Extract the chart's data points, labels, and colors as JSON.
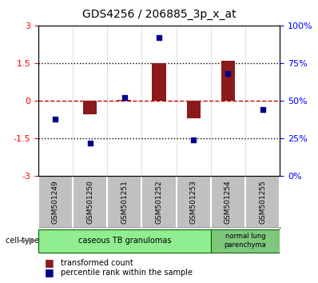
{
  "title": "GDS4256 / 206885_3p_x_at",
  "samples": [
    "GSM501249",
    "GSM501250",
    "GSM501251",
    "GSM501252",
    "GSM501253",
    "GSM501254",
    "GSM501255"
  ],
  "transformed_count": [
    0.0,
    -0.55,
    0.05,
    1.5,
    -0.7,
    1.6,
    0.0
  ],
  "percentile_rank": [
    38,
    22,
    52,
    92,
    24,
    68,
    44
  ],
  "ylim_left": [
    -3,
    3
  ],
  "ylim_right": [
    0,
    100
  ],
  "yticks_left": [
    -3,
    -1.5,
    0,
    1.5,
    3
  ],
  "yticks_right": [
    0,
    25,
    50,
    75,
    100
  ],
  "ytick_labels_left": [
    "-3",
    "-1.5",
    "0",
    "1.5",
    "3"
  ],
  "ytick_labels_right": [
    "0%",
    "25%",
    "50%",
    "75%",
    "100%"
  ],
  "bar_color": "#8B1A1A",
  "point_color": "#00008B",
  "cell_types": [
    {
      "label": "caseous TB granulomas",
      "samples": [
        0,
        1,
        2,
        3,
        4
      ],
      "color": "#90EE90"
    },
    {
      "label": "normal lung\nparenchyma",
      "samples": [
        5,
        6
      ],
      "color": "#7EC87E"
    }
  ],
  "cell_type_label": "cell type",
  "legend1": "transformed count",
  "legend2": "percentile rank within the sample",
  "hline_color": "#CC0000",
  "dotted_line_color": "#000000",
  "sample_box_color": "#C0C0C0",
  "background_color": "#FFFFFF"
}
